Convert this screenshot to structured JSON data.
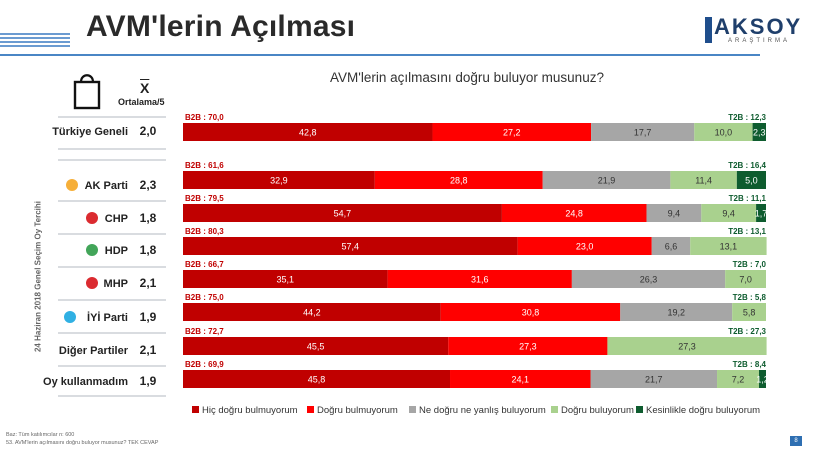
{
  "header": {
    "title": "AVM'lerin Açılması",
    "logo_text": "AKSOY",
    "logo_sub": "ARAŞTIRMA",
    "page_number": "8"
  },
  "table_header": {
    "mean_symbol": "X",
    "mean_label": "Ortalama/5"
  },
  "vertical_label": "24 Haziran 2018 Genel Seçim Oy Tercihi",
  "footer": {
    "base": "Baz: Tüm katılımcılar n: 600",
    "question": "53. AVM'lerin açılmasını doğru buluyor musunuz? TEK CEVAP"
  },
  "chart_data": {
    "type": "stacked-bar-horizontal",
    "title": "AVM'lerin açılmasını doğru buluyor musunuz?",
    "xlim": [
      0,
      100
    ],
    "series": [
      {
        "name": "Hiç doğru bulmuyorum",
        "color": "#c00000"
      },
      {
        "name": "Doğru bulmuyorum",
        "color": "#ff0000"
      },
      {
        "name": "Ne doğru ne yanlış buluyorum",
        "color": "#a6a6a6"
      },
      {
        "name": "Doğru buluyorum",
        "color": "#a9d18e"
      },
      {
        "name": "Kesinlikle doğru buluyorum",
        "color": "#0e5c2f"
      }
    ],
    "rows": [
      {
        "label": "Türkiye Geneli",
        "mean": "2,0",
        "b2b": "B2B : 70,0",
        "t2b": "T2B : 12,3",
        "values": [
          42.8,
          27.2,
          17.7,
          10.0,
          2.3
        ],
        "display": [
          "42,8",
          "27,2",
          "17,7",
          "10,0",
          "2,3"
        ]
      },
      {
        "label": "AK Parti",
        "mean": "2,3",
        "b2b": "B2B : 61,6",
        "t2b": "T2B : 16,4",
        "values": [
          32.9,
          28.8,
          21.9,
          11.4,
          5.0
        ],
        "display": [
          "32,9",
          "28,8",
          "21,9",
          "11,4",
          "5,0"
        ]
      },
      {
        "label": "CHP",
        "mean": "1,8",
        "b2b": "B2B : 79,5",
        "t2b": "T2B : 11,1",
        "values": [
          54.7,
          24.8,
          9.4,
          9.4,
          1.7
        ],
        "display": [
          "54,7",
          "24,8",
          "9,4",
          "9,4",
          "1,7"
        ]
      },
      {
        "label": "HDP",
        "mean": "1,8",
        "b2b": "B2B : 80,3",
        "t2b": "T2B : 13,1",
        "values": [
          57.4,
          23.0,
          6.6,
          13.1,
          0
        ],
        "display": [
          "57,4",
          "23,0",
          "6,6",
          "13,1",
          ""
        ]
      },
      {
        "label": "MHP",
        "mean": "2,1",
        "b2b": "B2B : 66,7",
        "t2b": "T2B : 7,0",
        "values": [
          35.1,
          31.6,
          26.3,
          7.0,
          0
        ],
        "display": [
          "35,1",
          "31,6",
          "26,3",
          "7,0",
          ""
        ]
      },
      {
        "label": "İYİ Parti",
        "mean": "1,9",
        "b2b": "B2B : 75,0",
        "t2b": "T2B : 5,8",
        "values": [
          44.2,
          30.8,
          19.2,
          5.8,
          0
        ],
        "display": [
          "44,2",
          "30,8",
          "19,2",
          "5,8",
          ""
        ]
      },
      {
        "label": "Diğer Partiler",
        "mean": "2,1",
        "b2b": "B2B : 72,7",
        "t2b": "T2B : 27,3",
        "values": [
          45.5,
          27.3,
          0,
          27.3,
          0
        ],
        "display": [
          "45,5",
          "27,3",
          "",
          "27,3",
          ""
        ]
      },
      {
        "label": "Oy kullanmadım",
        "mean": "1,9",
        "b2b": "B2B : 69,9",
        "t2b": "T2B : 8,4",
        "values": [
          45.8,
          24.1,
          21.7,
          7.2,
          1.2
        ],
        "display": [
          "45,8",
          "24,1",
          "21,7",
          "7,2",
          "1,2"
        ]
      }
    ]
  }
}
